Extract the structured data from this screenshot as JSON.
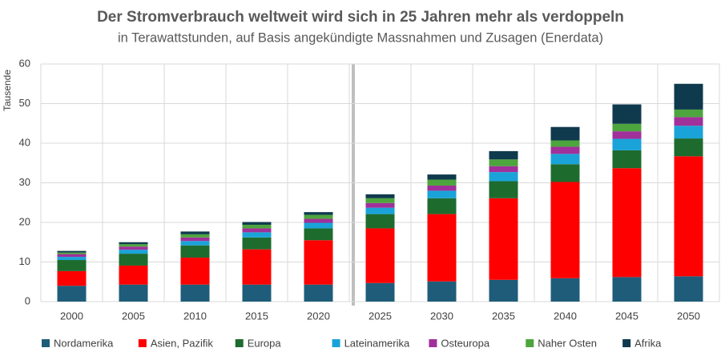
{
  "chart_data": {
    "type": "stacked_bar",
    "title": "Der Stromverbrauch weltweit wird sich in 25 Jahren mehr als verdoppeln",
    "subtitle": "in Terawattstunden, auf Basis angekündigte Massnahmen und Zusagen (Enerdata)",
    "y_label": "Tausende",
    "categories": [
      "2000",
      "2005",
      "2010",
      "2015",
      "2020",
      "2025",
      "2030",
      "2035",
      "2040",
      "2045",
      "2050"
    ],
    "series": [
      {
        "name": "Nordamerika",
        "color": "#1f5c7a",
        "values": [
          4.0,
          4.3,
          4.3,
          4.3,
          4.3,
          4.7,
          5.1,
          5.5,
          5.9,
          6.2,
          6.4
        ]
      },
      {
        "name": "Asien, Pazifik",
        "color": "#ff0000",
        "values": [
          3.7,
          4.8,
          6.8,
          8.9,
          11.2,
          13.8,
          17.0,
          20.6,
          24.3,
          27.5,
          30.3
        ]
      },
      {
        "name": "Europa",
        "color": "#1e6b2e",
        "values": [
          2.8,
          3.0,
          3.1,
          3.0,
          3.0,
          3.6,
          4.0,
          4.3,
          4.5,
          4.5,
          4.5
        ]
      },
      {
        "name": "Lateinamerika",
        "color": "#1aa3d9",
        "values": [
          0.8,
          1.0,
          1.1,
          1.3,
          1.4,
          1.6,
          1.9,
          2.3,
          2.6,
          2.9,
          3.2
        ]
      },
      {
        "name": "Osteuropa",
        "color": "#a0309a",
        "values": [
          0.7,
          0.8,
          0.9,
          1.0,
          1.0,
          1.2,
          1.3,
          1.5,
          1.8,
          1.9,
          2.2
        ]
      },
      {
        "name": "Naher Osten",
        "color": "#4da53d",
        "values": [
          0.4,
          0.6,
          0.8,
          0.9,
          1.0,
          1.2,
          1.5,
          1.7,
          1.6,
          1.9,
          1.9
        ]
      },
      {
        "name": "Afrika",
        "color": "#0f3a4d",
        "values": [
          0.4,
          0.5,
          0.7,
          0.7,
          0.7,
          1.0,
          1.3,
          2.1,
          3.4,
          4.9,
          6.5
        ]
      }
    ],
    "ylim": [
      0,
      60
    ],
    "yticks": [
      0,
      10,
      20,
      30,
      40,
      50,
      60
    ],
    "grid": true
  }
}
